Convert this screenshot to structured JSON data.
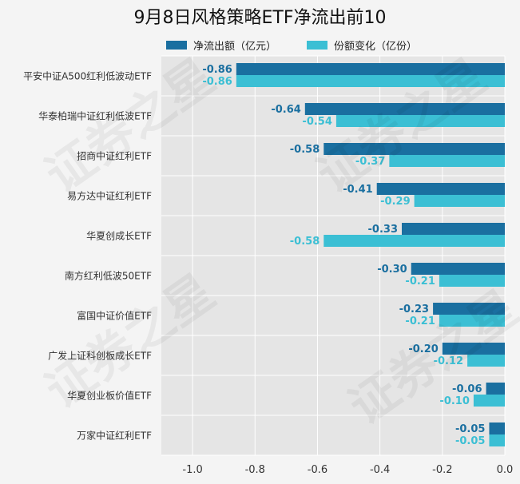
{
  "chart_data": {
    "type": "bar",
    "orientation": "horizontal",
    "title": "9月8日风格策略ETF净流出前10",
    "categories": [
      "平安中证A500红利低波动ETF",
      "华泰柏瑞中证红利低波ETF",
      "招商中证红利ETF",
      "易方达中证红利ETF",
      "华夏创成长ETF",
      "南方红利低波50ETF",
      "富国中证价值ETF",
      "广发上证科创板成长ETF",
      "华夏创业板价值ETF",
      "万家中证红利ETF"
    ],
    "series": [
      {
        "name": "净流出额（亿元）",
        "color": "#1a6fa0",
        "values": [
          -0.86,
          -0.64,
          -0.58,
          -0.41,
          -0.33,
          -0.3,
          -0.23,
          -0.2,
          -0.06,
          -0.05
        ]
      },
      {
        "name": "份额变化（亿份）",
        "color": "#3bbfd4",
        "values": [
          -0.86,
          -0.54,
          -0.37,
          -0.29,
          -0.58,
          -0.21,
          -0.21,
          -0.12,
          -0.1,
          -0.05
        ]
      }
    ],
    "x_ticks": [
      "-1.0",
      "-0.8",
      "-0.6",
      "-0.4",
      "-0.2",
      "0.0"
    ],
    "xlim": [
      -1.1,
      0.0
    ],
    "grid": true,
    "legend_position": "top"
  },
  "watermark": "证券之星"
}
